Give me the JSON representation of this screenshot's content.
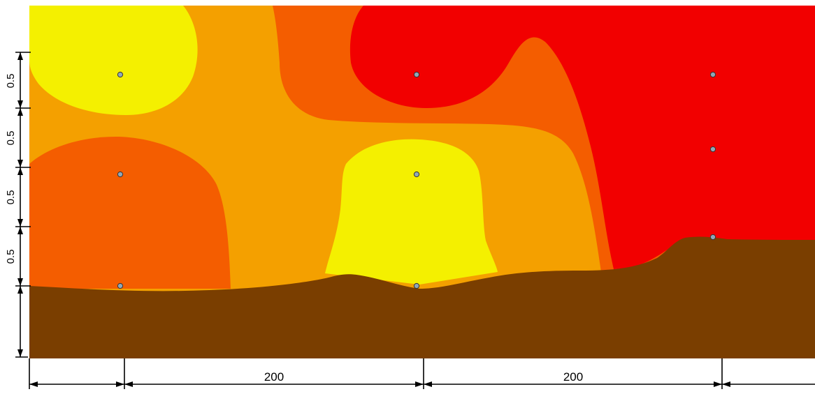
{
  "colors": {
    "yellow": "#f4f000",
    "orange": "#f4a000",
    "dark_orange": "#f45d00",
    "red": "#f20000",
    "soil_brown": "#7a3e00",
    "dimension_line": "#000000",
    "marker_fill": "#8fa8b8"
  },
  "vertical_dimensions": {
    "labels": [
      "0.5",
      "0.5",
      "0.5",
      "0.5"
    ]
  },
  "horizontal_dimensions": {
    "labels": [
      "200",
      "200"
    ]
  },
  "markers": {
    "count": 9,
    "icon": "circle-marker-icon"
  }
}
